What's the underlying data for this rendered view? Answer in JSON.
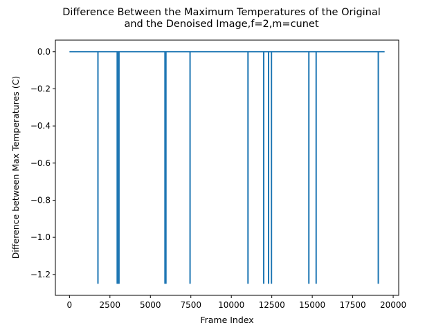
{
  "chart_data": {
    "type": "line",
    "title": [
      "Difference Between the Maximum Temperatures of the Original",
      "and the Denoised Image,f=2,m=cunet"
    ],
    "xlabel": "Frame Index",
    "ylabel": "Difference between Max Temperatures (C)",
    "xlim": [
      -870,
      20340
    ],
    "ylim": [
      -1.3125,
      0.0625
    ],
    "x_ticks": [
      0,
      2500,
      5000,
      7500,
      10000,
      12500,
      15000,
      17500,
      20000
    ],
    "x_tick_labels": [
      "0",
      "2500",
      "5000",
      "7500",
      "10000",
      "12500",
      "15000",
      "17500",
      "20000"
    ],
    "y_ticks": [
      0.0,
      -0.2,
      -0.4,
      -0.6,
      -0.8,
      -1.0,
      -1.2
    ],
    "y_tick_labels": [
      "0.0",
      "−0.2",
      "−0.4",
      "−0.6",
      "−0.8",
      "−1.0",
      "−1.2"
    ],
    "grid": false,
    "series": [
      {
        "color": "#1f77b4",
        "baseline": 0.0,
        "x_range": [
          0,
          19470
        ],
        "spikes": [
          {
            "x": 1760,
            "y": -1.25
          },
          {
            "x": 2950,
            "y": -1.25
          },
          {
            "x": 3000,
            "y": -1.25
          },
          {
            "x": 3060,
            "y": -1.25
          },
          {
            "x": 5900,
            "y": -1.25
          },
          {
            "x": 5960,
            "y": -1.25
          },
          {
            "x": 7450,
            "y": -1.25
          },
          {
            "x": 11030,
            "y": -1.25
          },
          {
            "x": 12000,
            "y": -1.25
          },
          {
            "x": 12300,
            "y": -1.25
          },
          {
            "x": 12480,
            "y": -1.25
          },
          {
            "x": 14790,
            "y": -1.25
          },
          {
            "x": 15240,
            "y": -1.25
          },
          {
            "x": 19080,
            "y": -1.25
          }
        ]
      }
    ]
  }
}
